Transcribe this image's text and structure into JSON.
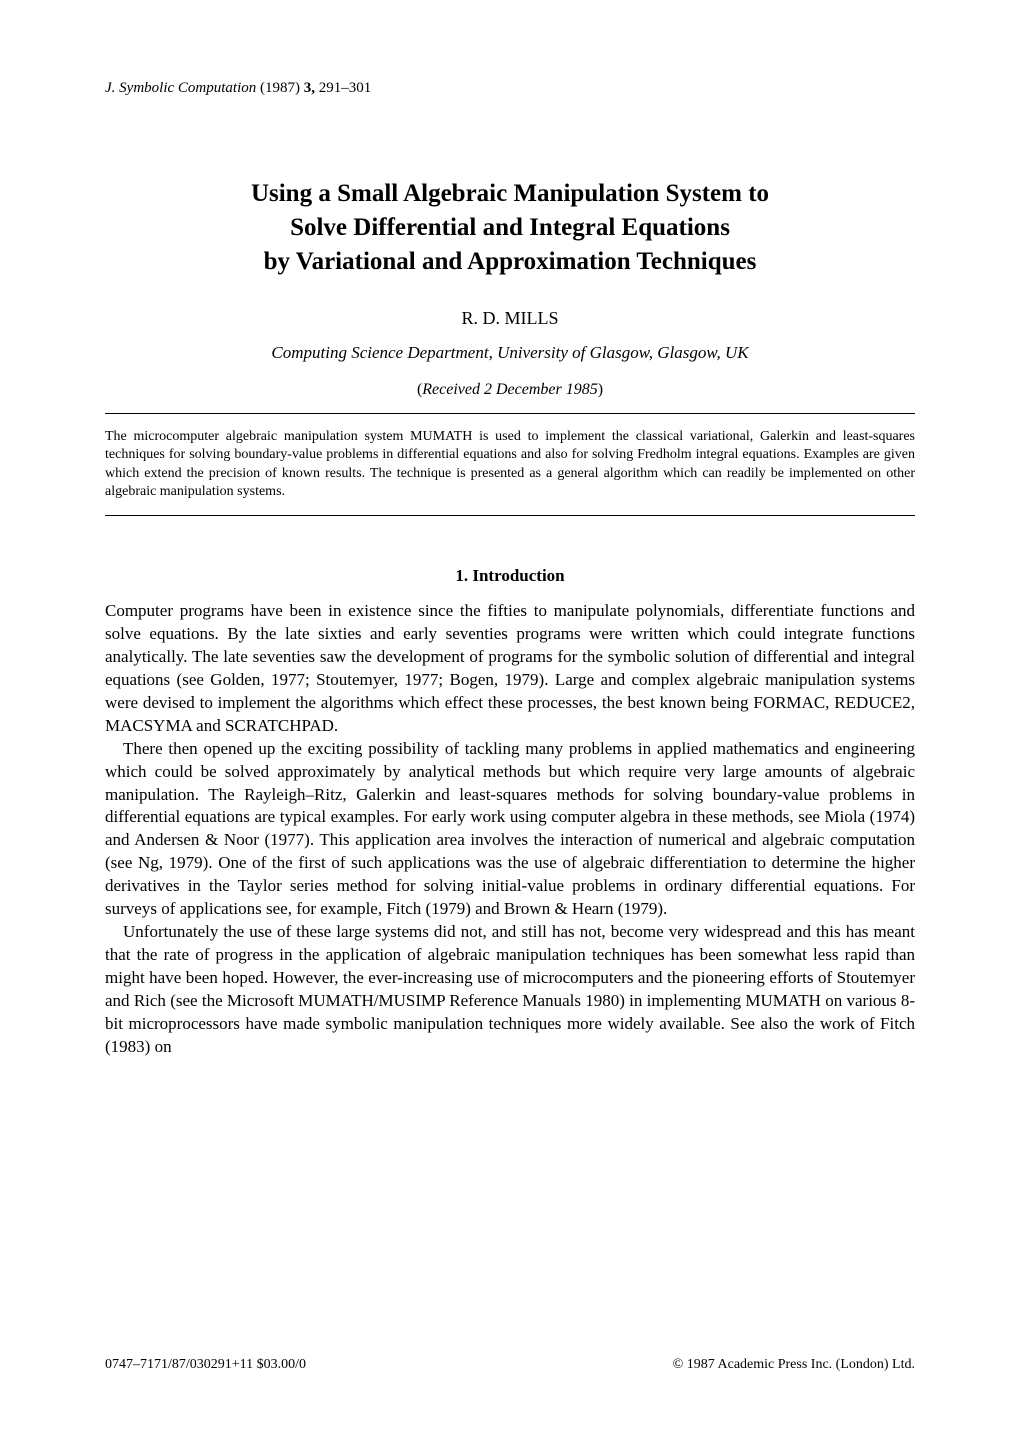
{
  "running_header": {
    "journal": "J. Symbolic Computation",
    "year": "(1987)",
    "volume": "3,",
    "pages": "291–301"
  },
  "title_lines": [
    "Using a Small Algebraic Manipulation System to",
    "Solve Differential and Integral Equations",
    "by Variational and Approximation Techniques"
  ],
  "author": "R. D. MILLS",
  "affiliation": "Computing Science Department, University of Glasgow, Glasgow, UK",
  "received": "Received 2 December 1985",
  "abstract": "The microcomputer algebraic manipulation system MUMATH is used to implement the classical variational, Galerkin and least-squares techniques for solving boundary-value problems in differential equations and also for solving Fredholm integral equations. Examples are given which extend the precision of known results. The technique is presented as a general algorithm which can readily be implemented on other algebraic manipulation systems.",
  "section_heading": "1. Introduction",
  "paragraphs": [
    "Computer programs have been in existence since the fifties to manipulate polynomials, differentiate functions and solve equations. By the late sixties and early seventies programs were written which could integrate functions analytically. The late seventies saw the development of programs for the symbolic solution of differential and integral equations (see Golden, 1977; Stoutemyer, 1977; Bogen, 1979). Large and complex algebraic manipulation systems were devised to implement the algorithms which effect these processes, the best known being FORMAC, REDUCE2, MACSYMA and SCRATCHPAD.",
    "There then opened up the exciting possibility of tackling many problems in applied mathematics and engineering which could be solved approximately by analytical methods but which require very large amounts of algebraic manipulation. The Rayleigh–Ritz, Galerkin and least-squares methods for solving boundary-value problems in differential equations are typical examples. For early work using computer algebra in these methods, see Miola (1974) and Andersen & Noor (1977). This application area involves the interaction of numerical and algebraic computation (see Ng, 1979). One of the first of such applications was the use of algebraic differentiation to determine the higher derivatives in the Taylor series method for solving initial-value problems in ordinary differential equations. For surveys of applications see, for example, Fitch (1979) and Brown & Hearn (1979).",
    "Unfortunately the use of these large systems did not, and still has not, become very widespread and this has meant that the rate of progress in the application of algebraic manipulation techniques has been somewhat less rapid than might have been hoped. However, the ever-increasing use of microcomputers and the pioneering efforts of Stoutemyer and Rich (see the Microsoft MUMATH/MUSIMP Reference Manuals 1980) in implementing MUMATH on various 8-bit microprocessors have made symbolic manipulation techniques more widely available. See also the work of Fitch (1983) on"
  ],
  "footer": {
    "left": "0747–7171/87/030291+11 $03.00/0",
    "right": "© 1987 Academic Press Inc. (London) Ltd."
  }
}
